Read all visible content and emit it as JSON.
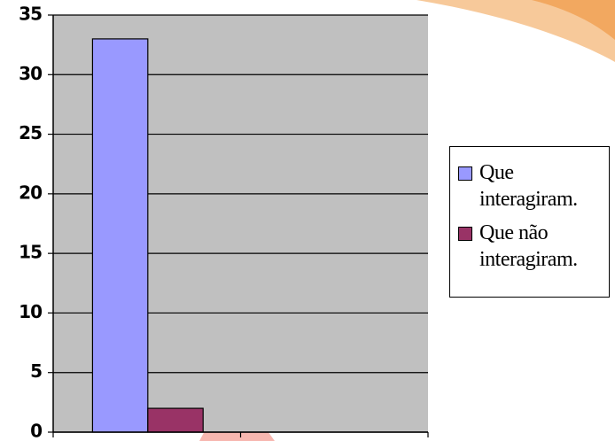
{
  "chart_data": {
    "type": "bar",
    "categories": [
      null,
      null
    ],
    "series": [
      {
        "name": "Que interagiram.",
        "color": "#9999ff",
        "values": [
          33,
          null
        ]
      },
      {
        "name": "Que não interagiram.",
        "color": "#993366",
        "values": [
          2,
          null
        ]
      }
    ],
    "ylim": [
      0,
      35
    ],
    "yticks": [
      0,
      5,
      10,
      15,
      20,
      25,
      30,
      35
    ],
    "grid": true,
    "legend": "right"
  }
}
